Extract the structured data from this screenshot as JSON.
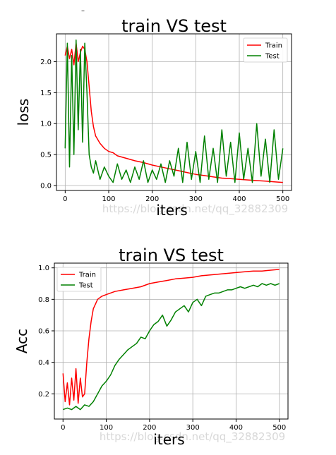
{
  "page": {
    "top_mark": "–"
  },
  "chart_data": [
    {
      "type": "line",
      "title": "train VS test",
      "xlabel": "iters",
      "ylabel": "loss",
      "xlim": [
        -20,
        520
      ],
      "ylim": [
        -0.08,
        2.45
      ],
      "xticks": [
        0,
        100,
        200,
        300,
        400,
        500
      ],
      "yticks": [
        0.0,
        0.5,
        1.0,
        1.5,
        2.0
      ],
      "xtick_labels": [
        "0",
        "100",
        "200",
        "300",
        "400",
        "500"
      ],
      "ytick_labels": [
        "0.0",
        "0.5",
        "1.0",
        "1.5",
        "2.0"
      ],
      "grid": true,
      "legend_position": "upper right",
      "watermark": "https://blog.csdn.net/qq_32882309",
      "series": [
        {
          "name": "Train",
          "color": "#ff0000",
          "x": [
            0,
            5,
            10,
            15,
            20,
            25,
            30,
            35,
            40,
            45,
            50,
            55,
            60,
            65,
            70,
            80,
            90,
            100,
            110,
            120,
            140,
            160,
            180,
            200,
            220,
            240,
            260,
            280,
            300,
            320,
            340,
            360,
            380,
            400,
            420,
            440,
            460,
            480,
            500
          ],
          "y": [
            2.1,
            2.25,
            2.05,
            2.2,
            1.95,
            2.3,
            2.0,
            2.15,
            2.25,
            2.2,
            2.0,
            1.6,
            1.2,
            0.95,
            0.8,
            0.68,
            0.6,
            0.55,
            0.53,
            0.48,
            0.44,
            0.4,
            0.37,
            0.33,
            0.3,
            0.27,
            0.24,
            0.21,
            0.18,
            0.16,
            0.14,
            0.12,
            0.11,
            0.1,
            0.09,
            0.08,
            0.07,
            0.06,
            0.05
          ]
        },
        {
          "name": "Test",
          "color": "#008000",
          "x": [
            0,
            5,
            10,
            15,
            20,
            25,
            30,
            35,
            40,
            45,
            50,
            55,
            60,
            65,
            70,
            80,
            90,
            100,
            110,
            120,
            130,
            140,
            150,
            160,
            170,
            180,
            190,
            200,
            210,
            220,
            230,
            240,
            250,
            260,
            270,
            280,
            290,
            300,
            310,
            320,
            330,
            340,
            350,
            360,
            370,
            380,
            390,
            400,
            410,
            420,
            430,
            440,
            450,
            460,
            470,
            480,
            490,
            500
          ],
          "y": [
            0.6,
            2.3,
            0.3,
            2.1,
            0.5,
            2.35,
            0.9,
            2.2,
            0.7,
            2.3,
            1.5,
            0.5,
            0.3,
            0.2,
            0.4,
            0.1,
            0.3,
            0.15,
            0.05,
            0.35,
            0.1,
            0.25,
            0.05,
            0.3,
            0.1,
            0.4,
            0.05,
            0.25,
            0.1,
            0.35,
            0.05,
            0.4,
            0.15,
            0.6,
            0.05,
            0.7,
            0.1,
            0.55,
            0.05,
            0.8,
            0.1,
            0.6,
            0.05,
            0.9,
            0.15,
            0.7,
            0.05,
            0.85,
            0.1,
            0.6,
            0.05,
            1.0,
            0.15,
            0.75,
            0.05,
            0.9,
            0.1,
            0.6
          ]
        }
      ]
    },
    {
      "type": "line",
      "title": "train VS test",
      "xlabel": "iters",
      "ylabel": "Acc",
      "xlim": [
        -20,
        520
      ],
      "ylim": [
        0.04,
        1.03
      ],
      "xticks": [
        0,
        100,
        200,
        300,
        400,
        500
      ],
      "yticks": [
        0.2,
        0.4,
        0.6,
        0.8,
        1.0
      ],
      "xtick_labels": [
        "0",
        "100",
        "200",
        "300",
        "400",
        "500"
      ],
      "ytick_labels": [
        "0.2",
        "0.4",
        "0.6",
        "0.8",
        "1.0"
      ],
      "grid": true,
      "legend_position": "upper left",
      "watermark": "https://blog.csdn.net/qq_32882309",
      "series": [
        {
          "name": "Train",
          "color": "#ff0000",
          "x": [
            0,
            5,
            10,
            15,
            20,
            25,
            30,
            35,
            40,
            45,
            50,
            55,
            60,
            65,
            70,
            80,
            90,
            100,
            120,
            140,
            160,
            180,
            200,
            220,
            240,
            260,
            280,
            300,
            320,
            340,
            360,
            380,
            400,
            420,
            440,
            460,
            480,
            500
          ],
          "y": [
            0.33,
            0.15,
            0.27,
            0.13,
            0.3,
            0.16,
            0.36,
            0.14,
            0.3,
            0.18,
            0.2,
            0.4,
            0.55,
            0.66,
            0.74,
            0.8,
            0.82,
            0.83,
            0.85,
            0.86,
            0.87,
            0.88,
            0.9,
            0.91,
            0.92,
            0.93,
            0.935,
            0.94,
            0.95,
            0.955,
            0.96,
            0.965,
            0.97,
            0.975,
            0.98,
            0.98,
            0.985,
            0.99
          ]
        },
        {
          "name": "Test",
          "color": "#008000",
          "x": [
            0,
            10,
            20,
            30,
            40,
            50,
            60,
            70,
            80,
            90,
            100,
            110,
            120,
            130,
            140,
            150,
            160,
            170,
            180,
            190,
            200,
            210,
            220,
            230,
            240,
            250,
            260,
            270,
            280,
            290,
            300,
            310,
            320,
            330,
            340,
            350,
            360,
            370,
            380,
            390,
            400,
            410,
            420,
            430,
            440,
            450,
            460,
            470,
            480,
            490,
            500
          ],
          "y": [
            0.1,
            0.11,
            0.1,
            0.12,
            0.1,
            0.13,
            0.12,
            0.15,
            0.2,
            0.25,
            0.28,
            0.32,
            0.38,
            0.42,
            0.45,
            0.48,
            0.5,
            0.52,
            0.56,
            0.55,
            0.6,
            0.64,
            0.66,
            0.7,
            0.63,
            0.67,
            0.72,
            0.74,
            0.76,
            0.72,
            0.78,
            0.8,
            0.76,
            0.82,
            0.83,
            0.84,
            0.84,
            0.85,
            0.86,
            0.86,
            0.87,
            0.88,
            0.87,
            0.88,
            0.89,
            0.88,
            0.9,
            0.89,
            0.9,
            0.89,
            0.9
          ]
        }
      ]
    }
  ]
}
